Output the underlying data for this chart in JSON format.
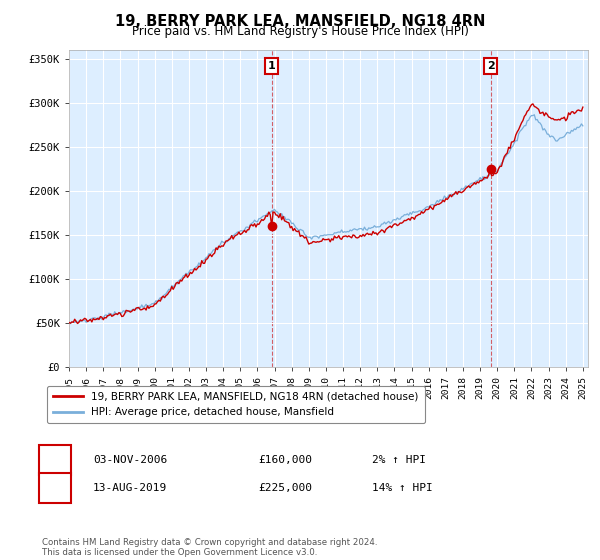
{
  "title": "19, BERRY PARK LEA, MANSFIELD, NG18 4RN",
  "subtitle": "Price paid vs. HM Land Registry's House Price Index (HPI)",
  "ylim": [
    0,
    360000
  ],
  "yticks": [
    0,
    50000,
    100000,
    150000,
    200000,
    250000,
    300000,
    350000
  ],
  "ytick_labels": [
    "£0",
    "£50K",
    "£100K",
    "£150K",
    "£200K",
    "£250K",
    "£300K",
    "£350K"
  ],
  "sale1_date": "03-NOV-2006",
  "sale1_price": 160000,
  "sale1_hpi": "2%",
  "sale1_label": "1",
  "sale1_x": 2006.84,
  "sale2_date": "13-AUG-2019",
  "sale2_price": 225000,
  "sale2_hpi": "14%",
  "sale2_label": "2",
  "sale2_x": 2019.62,
  "red_color": "#cc0000",
  "blue_color": "#7aafda",
  "legend_line1": "19, BERRY PARK LEA, MANSFIELD, NG18 4RN (detached house)",
  "legend_line2": "HPI: Average price, detached house, Mansfield",
  "footer": "Contains HM Land Registry data © Crown copyright and database right 2024.\nThis data is licensed under the Open Government Licence v3.0.",
  "plot_bg": "#ddeeff"
}
